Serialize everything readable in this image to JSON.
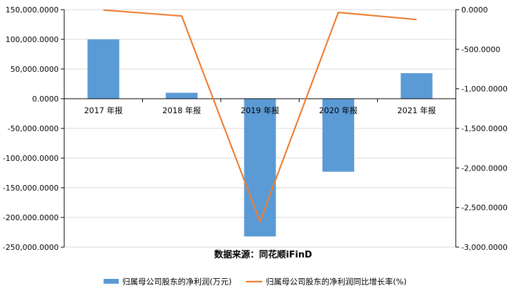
{
  "chart_data": {
    "type": "bar",
    "categories": [
      "2017 年报",
      "2018 年报",
      "2019 年报",
      "2020 年报",
      "2021 年报"
    ],
    "series": [
      {
        "name": "归属母公司股东的净利润(万元)",
        "kind": "bar",
        "axis": "left",
        "color": "#5B9BD5",
        "values": [
          100000,
          10000,
          -232000,
          -123000,
          43000
        ]
      },
      {
        "name": "归属母公司股东的净利润同比增长率(%)",
        "kind": "line",
        "axis": "right",
        "color": "#ED7D31",
        "values": [
          -5,
          -80,
          -2675,
          -35,
          -125
        ]
      }
    ],
    "ylim_left": [
      -250000,
      150000
    ],
    "ylim_right": [
      -3000,
      0
    ],
    "yticks_left": [
      "150,000.0000",
      "100,000.0000",
      "50,000.0000",
      "0.0000",
      "-50,000.0000",
      "-100,000.0000",
      "-150,000.0000",
      "-200,000.0000",
      "-250,000.0000"
    ],
    "yticks_right": [
      "0.0000",
      "-500.0000",
      "-1,000.0000",
      "-1,500.0000",
      "-2,000.0000",
      "-2,500.0000",
      "-3,000.0000"
    ],
    "grid": true,
    "legend_position": "bottom",
    "source": "数据来源：同花顺iFinD"
  }
}
